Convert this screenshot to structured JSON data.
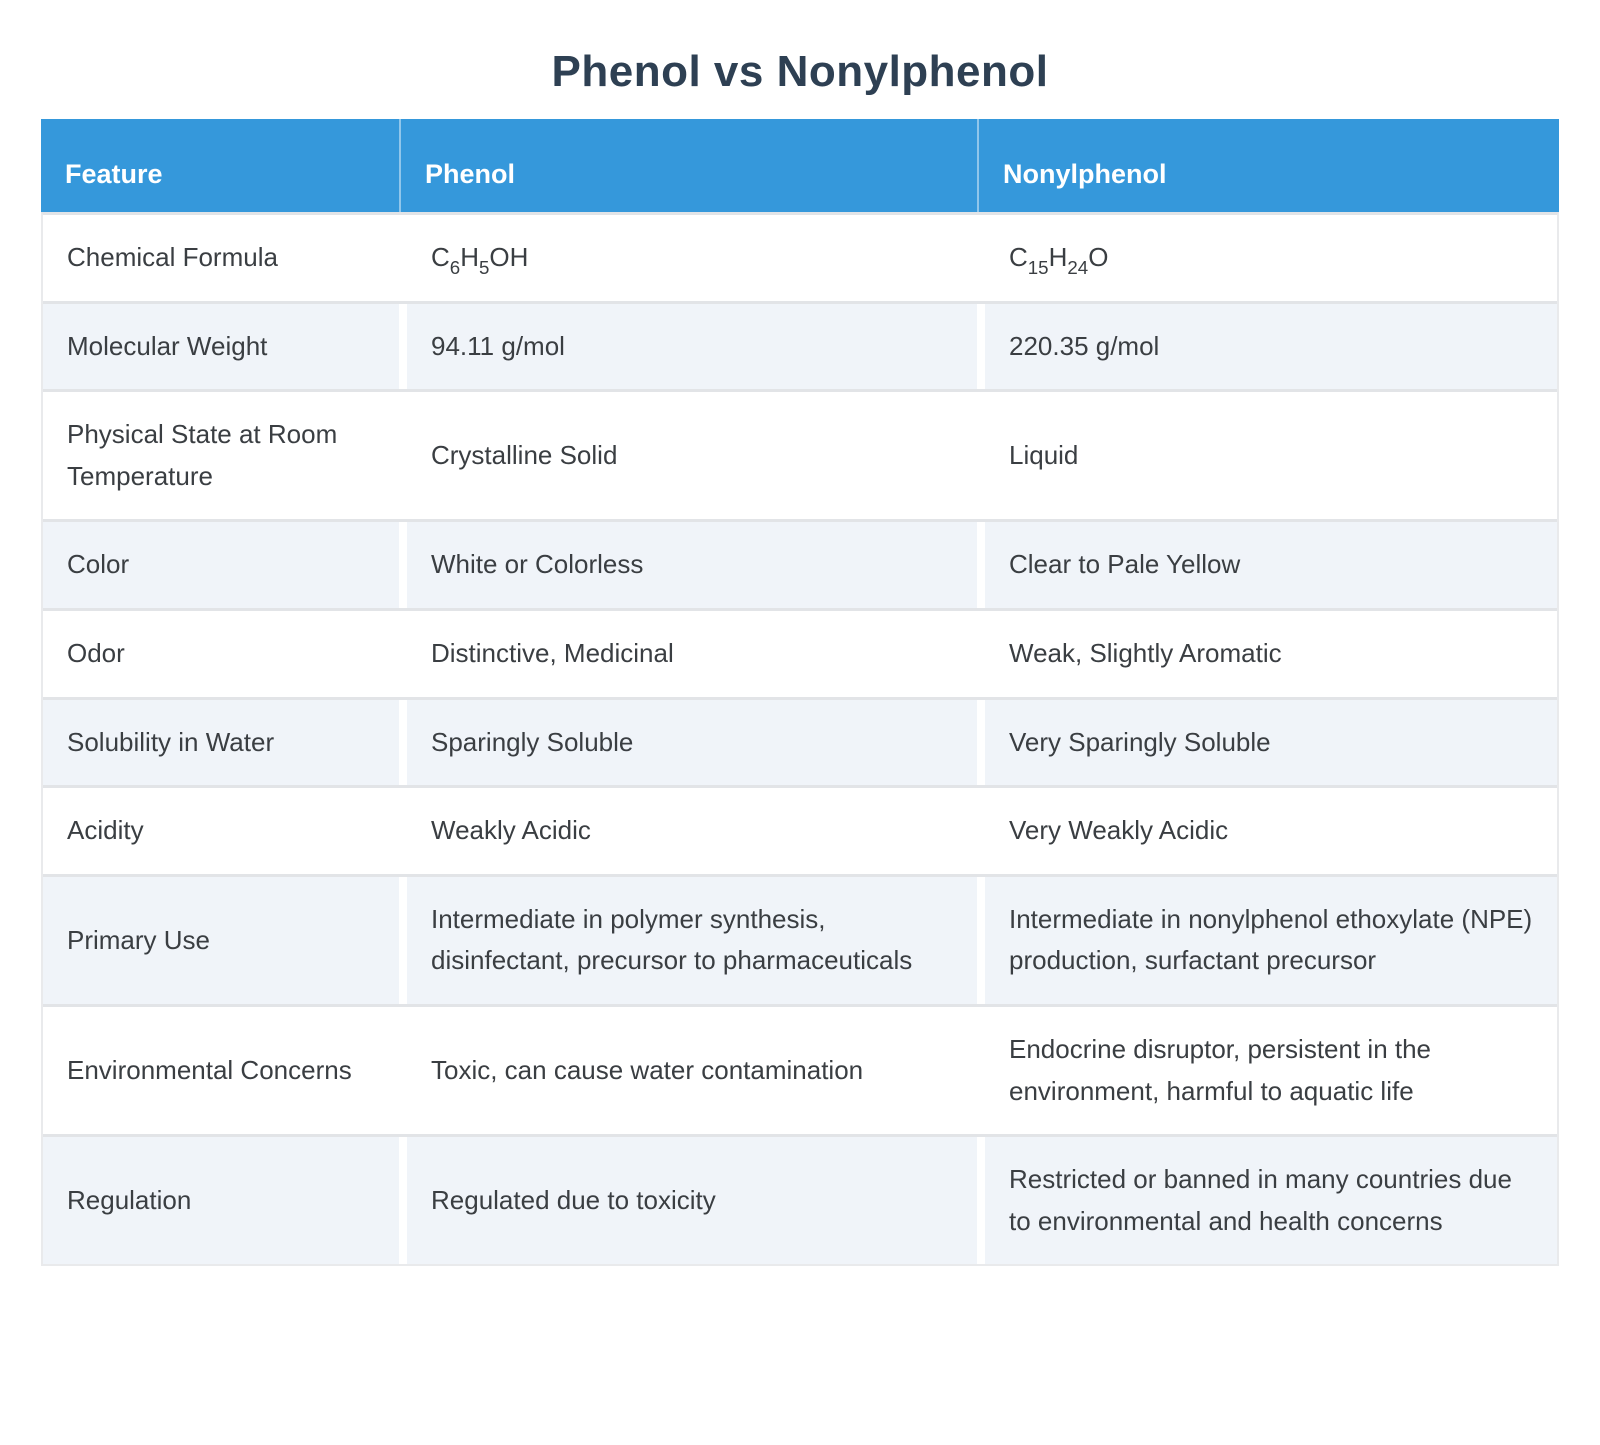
{
  "title": "Phenol vs Nonylphenol",
  "colors": {
    "header_bg": "#3598db",
    "header_text": "#ffffff",
    "row_bg": "#ffffff",
    "row_alt_bg": "#f0f4f9",
    "divider": "#e2e4e7",
    "title_color": "#2e4053",
    "body_text": "#3a3e42"
  },
  "table": {
    "columns": [
      "Feature",
      "Phenol",
      "Nonylphenol"
    ],
    "rows": [
      {
        "chem": true,
        "feature": "Chemical Formula",
        "phenol": "C_6H_5OH",
        "nonylphenol": "C_15H_24O"
      },
      {
        "feature": "Molecular Weight",
        "phenol": "94.11 g/mol",
        "nonylphenol": "220.35 g/mol"
      },
      {
        "feature": "Physical State at Room Temperature",
        "phenol": "Crystalline Solid",
        "nonylphenol": "Liquid"
      },
      {
        "feature": "Color",
        "phenol": "White or Colorless",
        "nonylphenol": "Clear to Pale Yellow"
      },
      {
        "feature": "Odor",
        "phenol": "Distinctive, Medicinal",
        "nonylphenol": "Weak, Slightly Aromatic"
      },
      {
        "feature": "Solubility in Water",
        "phenol": "Sparingly Soluble",
        "nonylphenol": "Very Sparingly Soluble"
      },
      {
        "feature": "Acidity",
        "phenol": "Weakly Acidic",
        "nonylphenol": "Very Weakly Acidic"
      },
      {
        "feature": "Primary Use",
        "phenol": "Intermediate in polymer synthesis, disinfectant, precursor to pharmaceuticals",
        "nonylphenol": "Intermediate in nonylphenol ethoxylate (NPE) production, surfactant precursor"
      },
      {
        "feature": "Environmental Concerns",
        "phenol": "Toxic, can cause water contamination",
        "nonylphenol": "Endocrine disruptor, persistent in the environment, harmful to aquatic life"
      },
      {
        "feature": "Regulation",
        "phenol": "Regulated due to toxicity",
        "nonylphenol": "Restricted or banned in many countries due to environmental and health concerns"
      }
    ]
  }
}
